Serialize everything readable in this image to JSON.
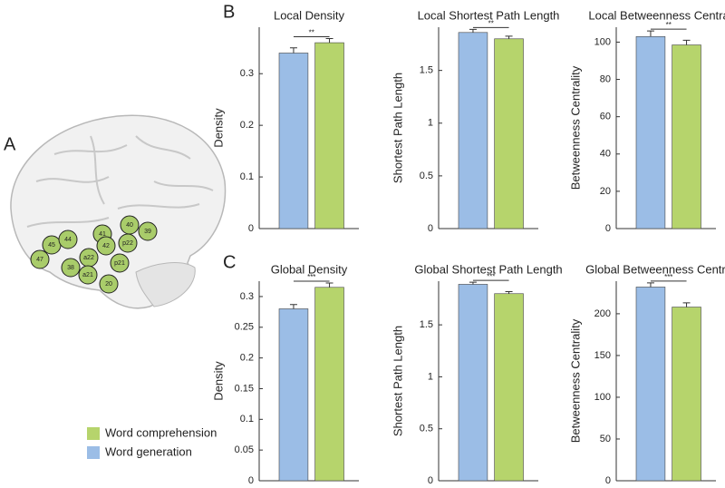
{
  "panel_labels": [
    "A",
    "B",
    "C"
  ],
  "brain_regions": [
    "45",
    "44",
    "47",
    "41",
    "40",
    "39",
    "42",
    "p22",
    "a22",
    "38",
    "a21",
    "p21",
    "20"
  ],
  "chart_data": [
    {
      "type": "bar",
      "title": "Local Density",
      "y_label": "Density",
      "annotation": "**",
      "categories": [
        null
      ],
      "series": [
        {
          "name": "Word generation",
          "color": "#9bbde6",
          "values": [
            0.34
          ],
          "errors": [
            0.01
          ]
        },
        {
          "name": "Word comprehension",
          "color": "#b6d46c",
          "values": [
            0.36
          ],
          "errors": [
            0.008
          ]
        }
      ],
      "ylim": [
        0,
        0.39
      ],
      "yticks": [
        0,
        0.1,
        0.2,
        0.3
      ]
    },
    {
      "type": "bar",
      "title": "Local Shortest Path Length",
      "y_label": "Shortest Path Length",
      "annotation": "**",
      "categories": [
        null
      ],
      "series": [
        {
          "name": "Word generation",
          "color": "#9bbde6",
          "values": [
            1.86
          ],
          "errors": [
            0.03
          ]
        },
        {
          "name": "Word comprehension",
          "color": "#b6d46c",
          "values": [
            1.8
          ],
          "errors": [
            0.025
          ]
        }
      ],
      "ylim": [
        0,
        1.91
      ],
      "yticks": [
        0,
        0.5,
        1,
        1.5
      ]
    },
    {
      "type": "bar",
      "title": "Local Betweenness Centrality",
      "y_label": "Betweenness Centrality",
      "annotation": "**",
      "categories": [
        null
      ],
      "series": [
        {
          "name": "Word generation",
          "color": "#9bbde6",
          "values": [
            103
          ],
          "errors": [
            3
          ]
        },
        {
          "name": "Word comprehension",
          "color": "#b6d46c",
          "values": [
            98.5
          ],
          "errors": [
            2.5
          ]
        }
      ],
      "ylim": [
        0,
        108
      ],
      "yticks": [
        0,
        20,
        40,
        60,
        80,
        100
      ]
    },
    {
      "type": "bar",
      "title": "Global Density",
      "y_label": "Density",
      "annotation": "***",
      "categories": [
        null
      ],
      "series": [
        {
          "name": "Word generation",
          "color": "#9bbde6",
          "values": [
            0.28
          ],
          "errors": [
            0.007
          ]
        },
        {
          "name": "Word comprehension",
          "color": "#b6d46c",
          "values": [
            0.315
          ],
          "errors": [
            0.007
          ]
        }
      ],
      "ylim": [
        0,
        0.325
      ],
      "yticks": [
        0,
        0.05,
        0.1,
        0.15,
        0.2,
        0.25,
        0.3
      ]
    },
    {
      "type": "bar",
      "title": "Global Shortest Path Length",
      "y_label": "Shortest Path Length",
      "annotation": "***",
      "categories": [
        null
      ],
      "series": [
        {
          "name": "Word generation",
          "color": "#9bbde6",
          "values": [
            1.89
          ],
          "errors": [
            0.02
          ]
        },
        {
          "name": "Word comprehension",
          "color": "#b6d46c",
          "values": [
            1.8
          ],
          "errors": [
            0.02
          ]
        }
      ],
      "ylim": [
        0,
        1.92
      ],
      "yticks": [
        0,
        0.5,
        1,
        1.5
      ]
    },
    {
      "type": "bar",
      "title": "Global Betweenness Centrality",
      "y_label": "Betweenness Centrality",
      "annotation": "***",
      "categories": [
        null
      ],
      "series": [
        {
          "name": "Word generation",
          "color": "#9bbde6",
          "values": [
            232
          ],
          "errors": [
            5
          ]
        },
        {
          "name": "Word comprehension",
          "color": "#b6d46c",
          "values": [
            208
          ],
          "errors": [
            5
          ]
        }
      ],
      "ylim": [
        0,
        239
      ],
      "yticks": [
        0,
        50,
        100,
        150,
        200
      ]
    }
  ]
}
